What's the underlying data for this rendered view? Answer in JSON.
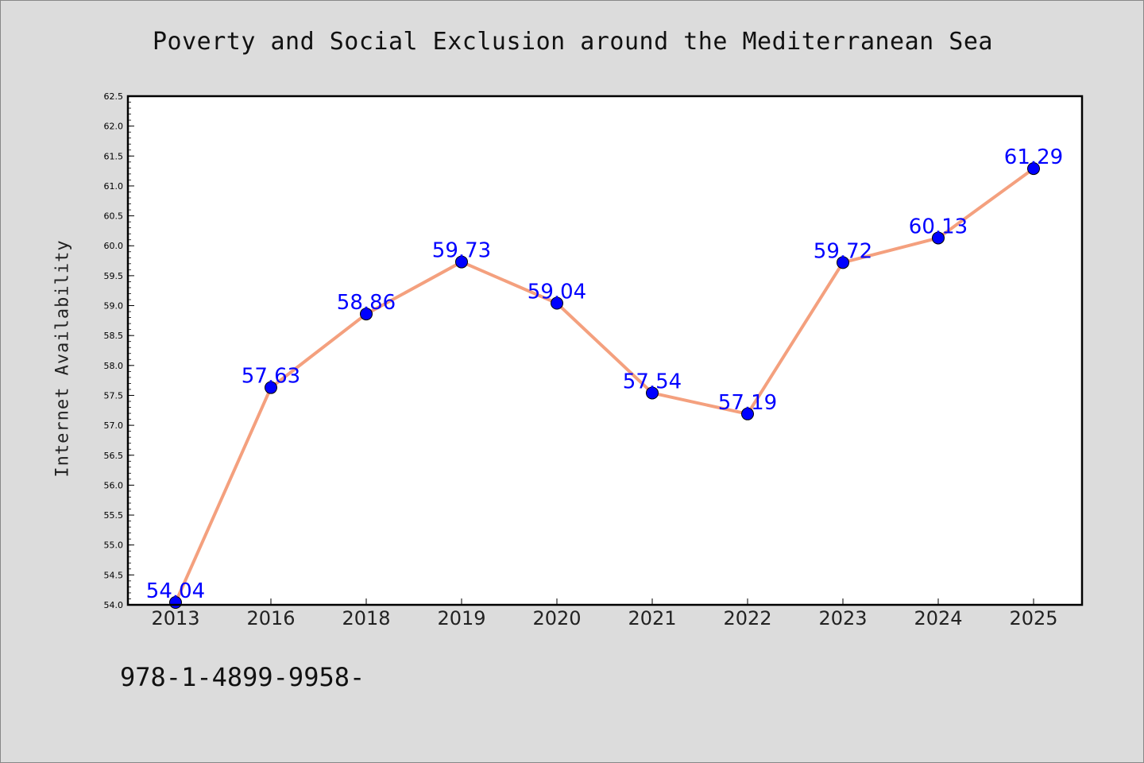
{
  "chart_data": {
    "type": "line",
    "title": "Poverty and Social Exclusion around the Mediterranean Sea",
    "xlabel": "",
    "ylabel": "Internet Availability",
    "categories": [
      "2013",
      "2016",
      "2018",
      "2019",
      "2020",
      "2021",
      "2022",
      "2023",
      "2024",
      "2025"
    ],
    "values": [
      54.04,
      57.63,
      58.86,
      59.73,
      59.04,
      57.54,
      57.19,
      59.72,
      60.13,
      61.29
    ],
    "data_labels": [
      "54.04",
      "57.63",
      "58.86",
      "59.73",
      "59.04",
      "57.54",
      "57.19",
      "59.72",
      "60.13",
      "61.29"
    ],
    "ylim": [
      54.0,
      62.5
    ],
    "yticks": [
      "54.0",
      "54.5",
      "55.0",
      "55.5",
      "56.0",
      "56.5",
      "57.0",
      "57.5",
      "58.0",
      "58.5",
      "59.0",
      "59.5",
      "60.0",
      "60.5",
      "61.0",
      "61.5",
      "62.0",
      "62.5"
    ],
    "grid": false,
    "line_color": "#f4a07e",
    "marker_color": "#0000ff",
    "label_color": "#0000ff"
  },
  "footer_text": "978-1-4899-9958-"
}
